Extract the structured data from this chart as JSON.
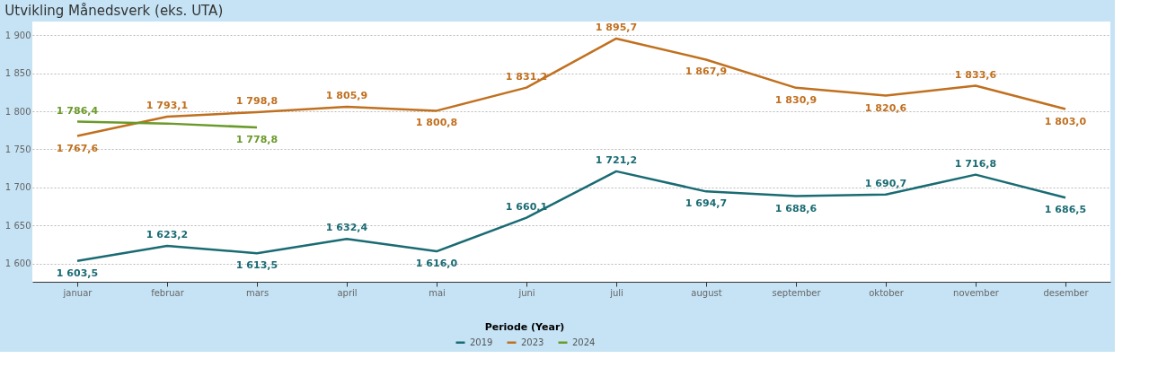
{
  "chart_data": {
    "type": "line",
    "title": "Utvikling Månedsverk (eks. UTA)",
    "legend_title": "Periode (Year)",
    "categories": [
      "januar",
      "februar",
      "mars",
      "april",
      "mai",
      "juni",
      "juli",
      "august",
      "september",
      "oktober",
      "november",
      "desember"
    ],
    "series": [
      {
        "name": "2019",
        "color": "#1a6b73",
        "values": [
          1603.5,
          1623.2,
          1613.5,
          1632.4,
          1616.0,
          1660.1,
          1721.2,
          1694.7,
          1688.6,
          1690.7,
          1716.8,
          1686.5
        ],
        "value_labels": [
          "1 603,5",
          "1 623,2",
          "1 613,5",
          "1 632,4",
          "1 616,0",
          "1 660,1",
          "1 721,2",
          "1 694,7",
          "1 688,6",
          "1 690,7",
          "1 716,8",
          "1 686,5"
        ]
      },
      {
        "name": "2023",
        "color": "#c0701f",
        "values": [
          1767.6,
          1793.1,
          1798.8,
          1805.9,
          1800.8,
          1831.2,
          1895.7,
          1867.9,
          1830.9,
          1820.6,
          1833.6,
          1803.0
        ],
        "value_labels": [
          "1 767,6",
          "1 793,1",
          "1 798,8",
          "1 805,9",
          "1 800,8",
          "1 831,2",
          "1 895,7",
          "1 867,9",
          "1 830,9",
          "1 820,6",
          "1 833,6",
          "1 803,0"
        ]
      },
      {
        "name": "2024",
        "color": "#6b9a2a",
        "values": [
          1786.4,
          1784.0,
          1778.8,
          null,
          null,
          null,
          null,
          null,
          null,
          null,
          null,
          null
        ],
        "value_labels": [
          "1 786,4",
          null,
          "1 778,8",
          null,
          null,
          null,
          null,
          null,
          null,
          null,
          null,
          null
        ]
      }
    ],
    "ylim": [
      1576,
      1918
    ],
    "yticks": [
      {
        "value": 1600,
        "label": "1 600"
      },
      {
        "value": 1650,
        "label": "1 650"
      },
      {
        "value": 1700,
        "label": "1 700"
      },
      {
        "value": 1750,
        "label": "1 750"
      },
      {
        "value": 1800,
        "label": "1 800"
      },
      {
        "value": 1850,
        "label": "1 850"
      },
      {
        "value": 1900,
        "label": "1 900"
      }
    ],
    "grid": "y",
    "legend": "bottom",
    "marker": "none",
    "line_style": "solid"
  }
}
